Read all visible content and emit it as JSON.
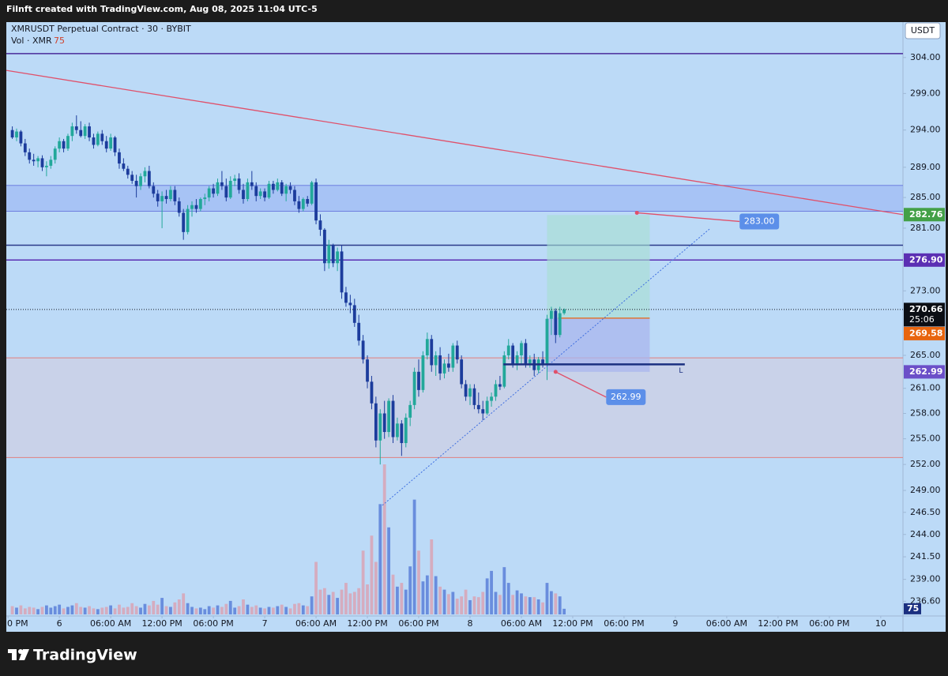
{
  "chart_data": {
    "type": "candlestick",
    "watermark": "Filnft created with TradingView.com, Aug 08, 2025 11:04 UTC-5",
    "title": "XMRUSDT Perpetual Contract · 30 · BYBIT",
    "volume_name": "Vol · XMR",
    "currency": "USDT",
    "brand": "TradingView",
    "log_scale": true,
    "grid": false,
    "xlim": [
      -6.2,
      98.6
    ],
    "ylim": [
      235,
      309
    ],
    "volume_lim": [
      0,
      2000
    ],
    "up_color": "#22a89a",
    "down_color": "#1c3c9c",
    "volume_up_color": "#5a7fd8",
    "volume_down_color": "#d9a3b5",
    "xticks": [
      {
        "value": -6,
        "label": "0 PM"
      },
      {
        "value": 0,
        "label": "6"
      },
      {
        "value": 6,
        "label": "06:00 AM"
      },
      {
        "value": 12,
        "label": "12:00 PM"
      },
      {
        "value": 18,
        "label": "06:00 PM"
      },
      {
        "value": 24,
        "label": "7"
      },
      {
        "value": 30,
        "label": "06:00 AM"
      },
      {
        "value": 36,
        "label": "12:00 PM"
      },
      {
        "value": 42,
        "label": "06:00 PM"
      },
      {
        "value": 48,
        "label": "8"
      },
      {
        "value": 54,
        "label": "06:00 AM"
      },
      {
        "value": 60,
        "label": "12:00 PM"
      },
      {
        "value": 66,
        "label": "06:00 PM"
      },
      {
        "value": 72,
        "label": "9"
      },
      {
        "value": 78,
        "label": "06:00 AM"
      },
      {
        "value": 84,
        "label": "12:00 PM"
      },
      {
        "value": 90,
        "label": "06:00 PM"
      },
      {
        "value": 96,
        "label": "10"
      }
    ],
    "yticks": [
      {
        "value": 304,
        "label": "304.00"
      },
      {
        "value": 299,
        "label": "299.00"
      },
      {
        "value": 294,
        "label": "294.00"
      },
      {
        "value": 289,
        "label": "289.00"
      },
      {
        "value": 285,
        "label": "285.00"
      },
      {
        "value": 281,
        "label": "281.00"
      },
      {
        "value": 273,
        "label": "273.00"
      },
      {
        "value": 265,
        "label": "265.00"
      },
      {
        "value": 261,
        "label": "261.00"
      },
      {
        "value": 258,
        "label": "258.00"
      },
      {
        "value": 255,
        "label": "255.00"
      },
      {
        "value": 252,
        "label": "252.00"
      },
      {
        "value": 249,
        "label": "249.00"
      },
      {
        "value": 246.5,
        "label": "246.50"
      },
      {
        "value": 244,
        "label": "244.00"
      },
      {
        "value": 241.5,
        "label": "241.50"
      },
      {
        "value": 239,
        "label": "239.00"
      },
      {
        "value": 236.6,
        "label": "236.60"
      }
    ],
    "x": [
      -5.5,
      -5,
      -4.5,
      -4,
      -3.5,
      -3,
      -2.5,
      -2,
      -1.5,
      -1,
      -0.5,
      0,
      0.5,
      1,
      1.5,
      2,
      2.5,
      3,
      3.5,
      4,
      4.5,
      5,
      5.5,
      6,
      6.5,
      7,
      7.5,
      8,
      8.5,
      9,
      9.5,
      10,
      10.5,
      11,
      11.5,
      12,
      12.5,
      13,
      13.5,
      14,
      14.5,
      15,
      15.5,
      16,
      16.5,
      17,
      17.5,
      18,
      18.5,
      19,
      19.5,
      20,
      20.5,
      21,
      21.5,
      22,
      22.5,
      23,
      23.5,
      24,
      24.5,
      25,
      25.5,
      26,
      26.5,
      27,
      27.5,
      28,
      28.5,
      29,
      29.5,
      30,
      30.5,
      31,
      31.5,
      32,
      32.5,
      33,
      33.5,
      34,
      34.5,
      35,
      35.5,
      36,
      36.5,
      37,
      37.5,
      38,
      38.5,
      39,
      39.5,
      40,
      40.5,
      41,
      41.5,
      42,
      42.5,
      43,
      43.5,
      44,
      44.5,
      45,
      45.5,
      46,
      46.5,
      47,
      47.5,
      48,
      48.5,
      49,
      49.5,
      50,
      50.5,
      51,
      51.5,
      52,
      52.5,
      53,
      53.5,
      54,
      54.5,
      55,
      55.5,
      56,
      56.5,
      57,
      57.5,
      58,
      58.5,
      59
    ],
    "open": [
      294.0,
      293.0,
      293.8,
      292.2,
      291.0,
      290.0,
      289.8,
      290.2,
      289.0,
      289.2,
      290.0,
      291.5,
      292.5,
      291.5,
      293.2,
      294.5,
      294.0,
      293.2,
      294.5,
      293.0,
      292.0,
      293.5,
      292.5,
      291.5,
      293.0,
      291.0,
      289.5,
      288.8,
      288.0,
      287.2,
      286.5,
      287.8,
      288.5,
      286.5,
      285.5,
      284.5,
      285.2,
      284.8,
      286.0,
      284.5,
      283.0,
      280.5,
      283.5,
      284.0,
      283.5,
      284.8,
      285.0,
      286.2,
      285.5,
      287.0,
      286.5,
      285.0,
      287.2,
      287.5,
      286.0,
      284.8,
      287.0,
      286.5,
      285.2,
      285.8,
      285.0,
      286.8,
      286.0,
      287.0,
      285.5,
      286.5,
      286.0,
      284.5,
      283.5,
      284.8,
      284.2,
      287.0,
      282.0,
      280.8,
      276.5,
      278.8,
      276.5,
      278.0,
      272.8,
      271.5,
      271.2,
      269.0,
      266.8,
      264.5,
      261.8,
      259.2,
      254.8,
      258.0,
      255.8,
      259.5,
      255.2,
      256.8,
      254.5,
      257.5,
      259.0,
      263.0,
      260.8,
      265.0,
      267.0,
      263.8,
      265.0,
      262.8,
      264.0,
      263.5,
      266.2,
      264.5,
      261.5,
      260.0,
      261.0,
      259.0,
      258.5,
      258.0,
      259.5,
      260.0,
      261.5,
      261.2,
      265.0,
      266.2,
      264.0,
      265.0,
      266.5,
      264.0,
      264.5,
      263.2,
      264.5,
      264.0,
      269.5,
      270.5,
      267.5,
      270.2
    ],
    "high": [
      294.5,
      294.2,
      294.0,
      292.8,
      291.5,
      290.8,
      290.5,
      290.6,
      289.8,
      290.5,
      291.8,
      293.0,
      292.8,
      293.5,
      295.0,
      296.0,
      295.2,
      294.8,
      295.0,
      293.5,
      293.8,
      294.0,
      293.2,
      293.5,
      293.2,
      291.5,
      290.2,
      289.2,
      288.5,
      288.0,
      288.2,
      289.0,
      289.2,
      287.0,
      286.0,
      285.8,
      286.0,
      286.5,
      286.5,
      285.0,
      283.5,
      284.0,
      284.5,
      284.8,
      285.0,
      285.5,
      286.5,
      286.8,
      287.5,
      288.5,
      287.5,
      287.8,
      288.0,
      288.2,
      286.8,
      287.5,
      288.5,
      287.0,
      286.2,
      286.2,
      287.2,
      287.2,
      287.5,
      287.3,
      286.8,
      287.0,
      286.5,
      285.2,
      285.0,
      285.2,
      287.2,
      287.5,
      282.8,
      281.0,
      279.5,
      279.0,
      278.5,
      278.8,
      273.5,
      272.5,
      272.0,
      270.0,
      267.5,
      265.0,
      262.5,
      260.0,
      258.5,
      259.5,
      259.8,
      260.2,
      257.5,
      257.2,
      258.0,
      259.5,
      263.5,
      264.5,
      265.5,
      267.8,
      267.5,
      265.5,
      266.0,
      264.5,
      265.2,
      266.5,
      266.8,
      265.0,
      262.0,
      261.5,
      261.5,
      260.5,
      259.5,
      260.0,
      260.5,
      262.0,
      262.5,
      265.5,
      267.0,
      266.5,
      265.5,
      266.8,
      267.0,
      265.0,
      265.2,
      264.8,
      265.5,
      270.0,
      271.0,
      270.8,
      271.0,
      270.8
    ],
    "low": [
      292.8,
      292.5,
      291.8,
      290.5,
      289.5,
      289.2,
      289.0,
      288.5,
      287.8,
      288.8,
      289.5,
      291.0,
      291.0,
      291.2,
      292.5,
      293.5,
      293.0,
      292.8,
      292.5,
      291.5,
      291.8,
      292.0,
      291.0,
      291.2,
      290.5,
      288.8,
      288.5,
      287.5,
      286.8,
      285.0,
      286.0,
      287.0,
      286.2,
      285.0,
      283.8,
      281.0,
      284.2,
      284.5,
      284.0,
      282.5,
      279.5,
      280.2,
      282.5,
      283.0,
      283.2,
      284.0,
      284.5,
      285.0,
      285.2,
      286.0,
      284.5,
      284.8,
      286.5,
      285.5,
      284.2,
      284.5,
      286.0,
      284.5,
      284.8,
      284.5,
      284.8,
      285.5,
      285.8,
      285.2,
      284.5,
      285.5,
      284.0,
      283.0,
      283.2,
      283.8,
      284.0,
      281.5,
      280.0,
      275.5,
      275.8,
      276.0,
      275.5,
      272.0,
      271.0,
      270.2,
      268.5,
      266.2,
      264.0,
      261.0,
      258.5,
      254.0,
      252.0,
      255.0,
      255.2,
      254.5,
      254.8,
      253.0,
      254.0,
      256.5,
      258.5,
      260.0,
      260.5,
      264.5,
      263.0,
      262.5,
      262.0,
      262.2,
      263.0,
      263.0,
      264.0,
      261.0,
      259.5,
      259.0,
      258.5,
      258.0,
      257.2,
      257.8,
      258.8,
      259.5,
      260.8,
      261.0,
      264.5,
      263.5,
      263.2,
      264.0,
      263.5,
      263.5,
      262.5,
      262.8,
      263.5,
      262.0,
      267.5,
      266.5,
      267.2,
      270.0
    ],
    "close": [
      293.0,
      293.8,
      292.2,
      291.0,
      290.0,
      289.8,
      290.2,
      289.0,
      289.2,
      290.0,
      291.5,
      292.5,
      291.5,
      293.2,
      294.5,
      294.0,
      293.2,
      294.5,
      293.0,
      292.0,
      293.5,
      292.5,
      291.5,
      293.0,
      291.0,
      289.5,
      288.8,
      288.0,
      287.2,
      286.5,
      287.8,
      288.5,
      286.5,
      285.5,
      284.5,
      285.2,
      284.8,
      286.0,
      284.5,
      283.0,
      280.5,
      283.5,
      284.0,
      283.5,
      284.8,
      285.0,
      286.2,
      285.5,
      287.0,
      286.5,
      285.0,
      287.2,
      287.5,
      286.0,
      284.8,
      287.0,
      286.5,
      285.2,
      285.8,
      285.0,
      286.8,
      286.0,
      287.0,
      285.5,
      286.5,
      286.0,
      284.5,
      283.5,
      284.8,
      284.2,
      287.0,
      282.0,
      280.8,
      276.5,
      278.8,
      276.5,
      278.0,
      272.8,
      271.5,
      271.2,
      269.0,
      266.8,
      264.5,
      261.8,
      259.2,
      254.8,
      258.0,
      255.8,
      259.5,
      255.2,
      256.8,
      254.5,
      257.5,
      259.0,
      263.0,
      260.8,
      265.0,
      267.0,
      263.8,
      265.0,
      262.8,
      264.0,
      263.5,
      266.2,
      264.5,
      261.5,
      260.0,
      261.0,
      259.0,
      258.5,
      258.0,
      259.5,
      260.0,
      261.5,
      261.2,
      265.0,
      266.2,
      264.0,
      265.0,
      266.5,
      264.0,
      264.5,
      263.2,
      264.5,
      264.0,
      269.5,
      270.5,
      267.5,
      270.2,
      270.66
    ],
    "volume": [
      110,
      90,
      120,
      80,
      100,
      90,
      70,
      100,
      120,
      90,
      110,
      130,
      80,
      100,
      120,
      150,
      100,
      90,
      110,
      80,
      70,
      90,
      100,
      120,
      80,
      130,
      90,
      100,
      150,
      110,
      90,
      140,
      120,
      180,
      130,
      220,
      110,
      100,
      160,
      200,
      280,
      150,
      100,
      80,
      90,
      70,
      110,
      90,
      120,
      100,
      140,
      180,
      90,
      110,
      200,
      130,
      100,
      120,
      90,
      80,
      100,
      90,
      110,
      130,
      100,
      80,
      140,
      150,
      120,
      110,
      240,
      700,
      330,
      350,
      260,
      300,
      220,
      330,
      420,
      280,
      300,
      350,
      850,
      400,
      1050,
      700,
      1470,
      2000,
      1160,
      530,
      370,
      420,
      330,
      640,
      1530,
      850,
      440,
      520,
      1000,
      510,
      370,
      330,
      270,
      300,
      210,
      240,
      330,
      190,
      240,
      230,
      300,
      480,
      580,
      300,
      260,
      630,
      420,
      260,
      320,
      280,
      240,
      230,
      230,
      200,
      160,
      420,
      310,
      280,
      240,
      75
    ],
    "zones": [
      {
        "top": 286.6,
        "bottom": 283.2,
        "color": "#8ea6f2",
        "border": "#6f7fe0"
      },
      {
        "top": 264.7,
        "bottom": 252.8,
        "color": "#d9c8d6",
        "border": "#e07f7f"
      }
    ],
    "hlines": [
      {
        "price": 304.55,
        "color": "#4a2a9a"
      },
      {
        "price": 278.8,
        "color": "#2a3a8a"
      },
      {
        "price": 276.9,
        "color": "#5b2fb3"
      }
    ],
    "trendlines": [
      {
        "x": [
          -6.2,
          98.6
        ],
        "y": [
          302.2,
          282.76
        ],
        "color": "#e0506a",
        "dashed": false
      },
      {
        "x": [
          37.75,
          76
        ],
        "y": [
          247.3,
          280.9
        ],
        "color": "#3f6fe0",
        "dashed": true
      }
    ],
    "position": {
      "x": [
        57,
        69
      ],
      "target": 282.7,
      "entry": 269.58,
      "stop": 262.99
    },
    "segment": {
      "price": 263.9,
      "x": [
        51.9,
        73.1
      ],
      "label": "L",
      "color": "#1a2f80"
    },
    "callouts": [
      {
        "x": 67.5,
        "value": 283,
        "label": "283.00"
      },
      {
        "x": 58,
        "value": 262.99
      }
    ],
    "axis_labels": [
      {
        "value": 282.76,
        "color": "#43a047"
      },
      {
        "value": 276.9,
        "label": "276.90",
        "color": "#5b2fb3"
      },
      {
        "value": 270.66,
        "sub": "25:06",
        "color": "#0b0e14"
      },
      {
        "value": 269.58,
        "color": "#e8650e"
      },
      {
        "value": 262.99,
        "color": "#6b4fc8"
      }
    ],
    "volume_label_color": "#1a2f80"
  }
}
